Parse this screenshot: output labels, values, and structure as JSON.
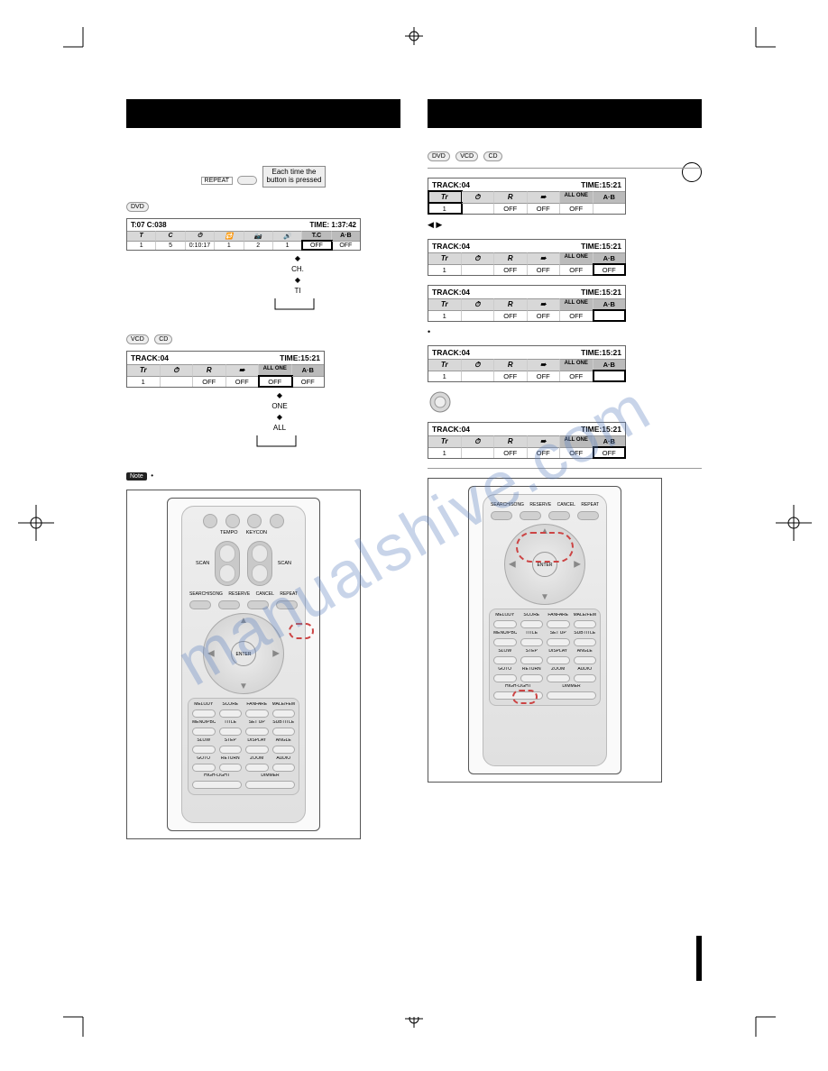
{
  "watermark_text": "manualshive.com",
  "repeat_label": "REPEAT",
  "repeat_hint": "Each time the\nbutton is pressed",
  "disc_badges": {
    "dvd": "DVD",
    "vcd": "VCD",
    "cd": "CD"
  },
  "dvd_osd": {
    "header_left": "T:07    C:038",
    "header_right": "TIME: 1:37:42",
    "row1": [
      "T",
      "C",
      "⏱",
      "🔁",
      "📷",
      "🔊",
      "T.C",
      "A·B"
    ],
    "row2": [
      "1",
      "5",
      "0:10:17",
      "1",
      "2",
      "1",
      "OFF",
      "OFF"
    ],
    "arrow_sequence": [
      "CH.",
      "TI"
    ]
  },
  "vcd_osd": {
    "header_left": "TRACK:04",
    "header_right": "TIME:15:21",
    "hdr": [
      "Tr",
      "⏱",
      "R",
      "➠",
      "ALL ONE",
      "A·B"
    ],
    "vals": [
      "1",
      "",
      "OFF",
      "OFF",
      "OFF",
      "OFF"
    ],
    "arrow_sequence": [
      "ONE",
      "ALL"
    ]
  },
  "osd_series": [
    {
      "highlight_col": 0,
      "ab_off": ""
    },
    {
      "highlight_col": 5,
      "ab_off": "OFF",
      "pre_arrows": "◀ ▶"
    },
    {
      "highlight_col": 5,
      "ab_off": ""
    },
    {
      "highlight_col": 5,
      "ab_off": "",
      "pre_diamond": true
    },
    {
      "highlight_col": 5,
      "ab_off": "OFF"
    }
  ],
  "note_label": "Note",
  "remote": {
    "tempo": "TEMPO",
    "keycon": "KEYCON",
    "scan": "SCAN",
    "plus": "+",
    "minus": "−",
    "sharp": "#",
    "flat": "♭",
    "four_pill_top": [
      "SEARCH/SONG",
      "RESERVE",
      "CANCEL",
      "REPEAT"
    ],
    "enter": "ENTER",
    "grid_rows": [
      [
        "MELODY",
        "SCORE",
        "FANFARE",
        "MALE/FEMALE"
      ],
      [
        "MENU/PBC",
        "TITLE",
        "SET UP",
        "SUBTITLE"
      ],
      [
        "SLOW",
        "STEP",
        "DISPLAY",
        "ANGLE"
      ],
      [
        "GOTO",
        "RETURN",
        "ZOOM",
        "AUDIO"
      ]
    ],
    "grid_row_last": [
      "HIGH-LIGHT",
      "DIMMER"
    ]
  },
  "colors": {
    "black": "#000000",
    "grey_bg": "#eeeeee",
    "grey_mid": "#cccccc",
    "grey_dark": "#888888",
    "red_dash": "#cc4444",
    "watermark": "#5a7fbf"
  }
}
